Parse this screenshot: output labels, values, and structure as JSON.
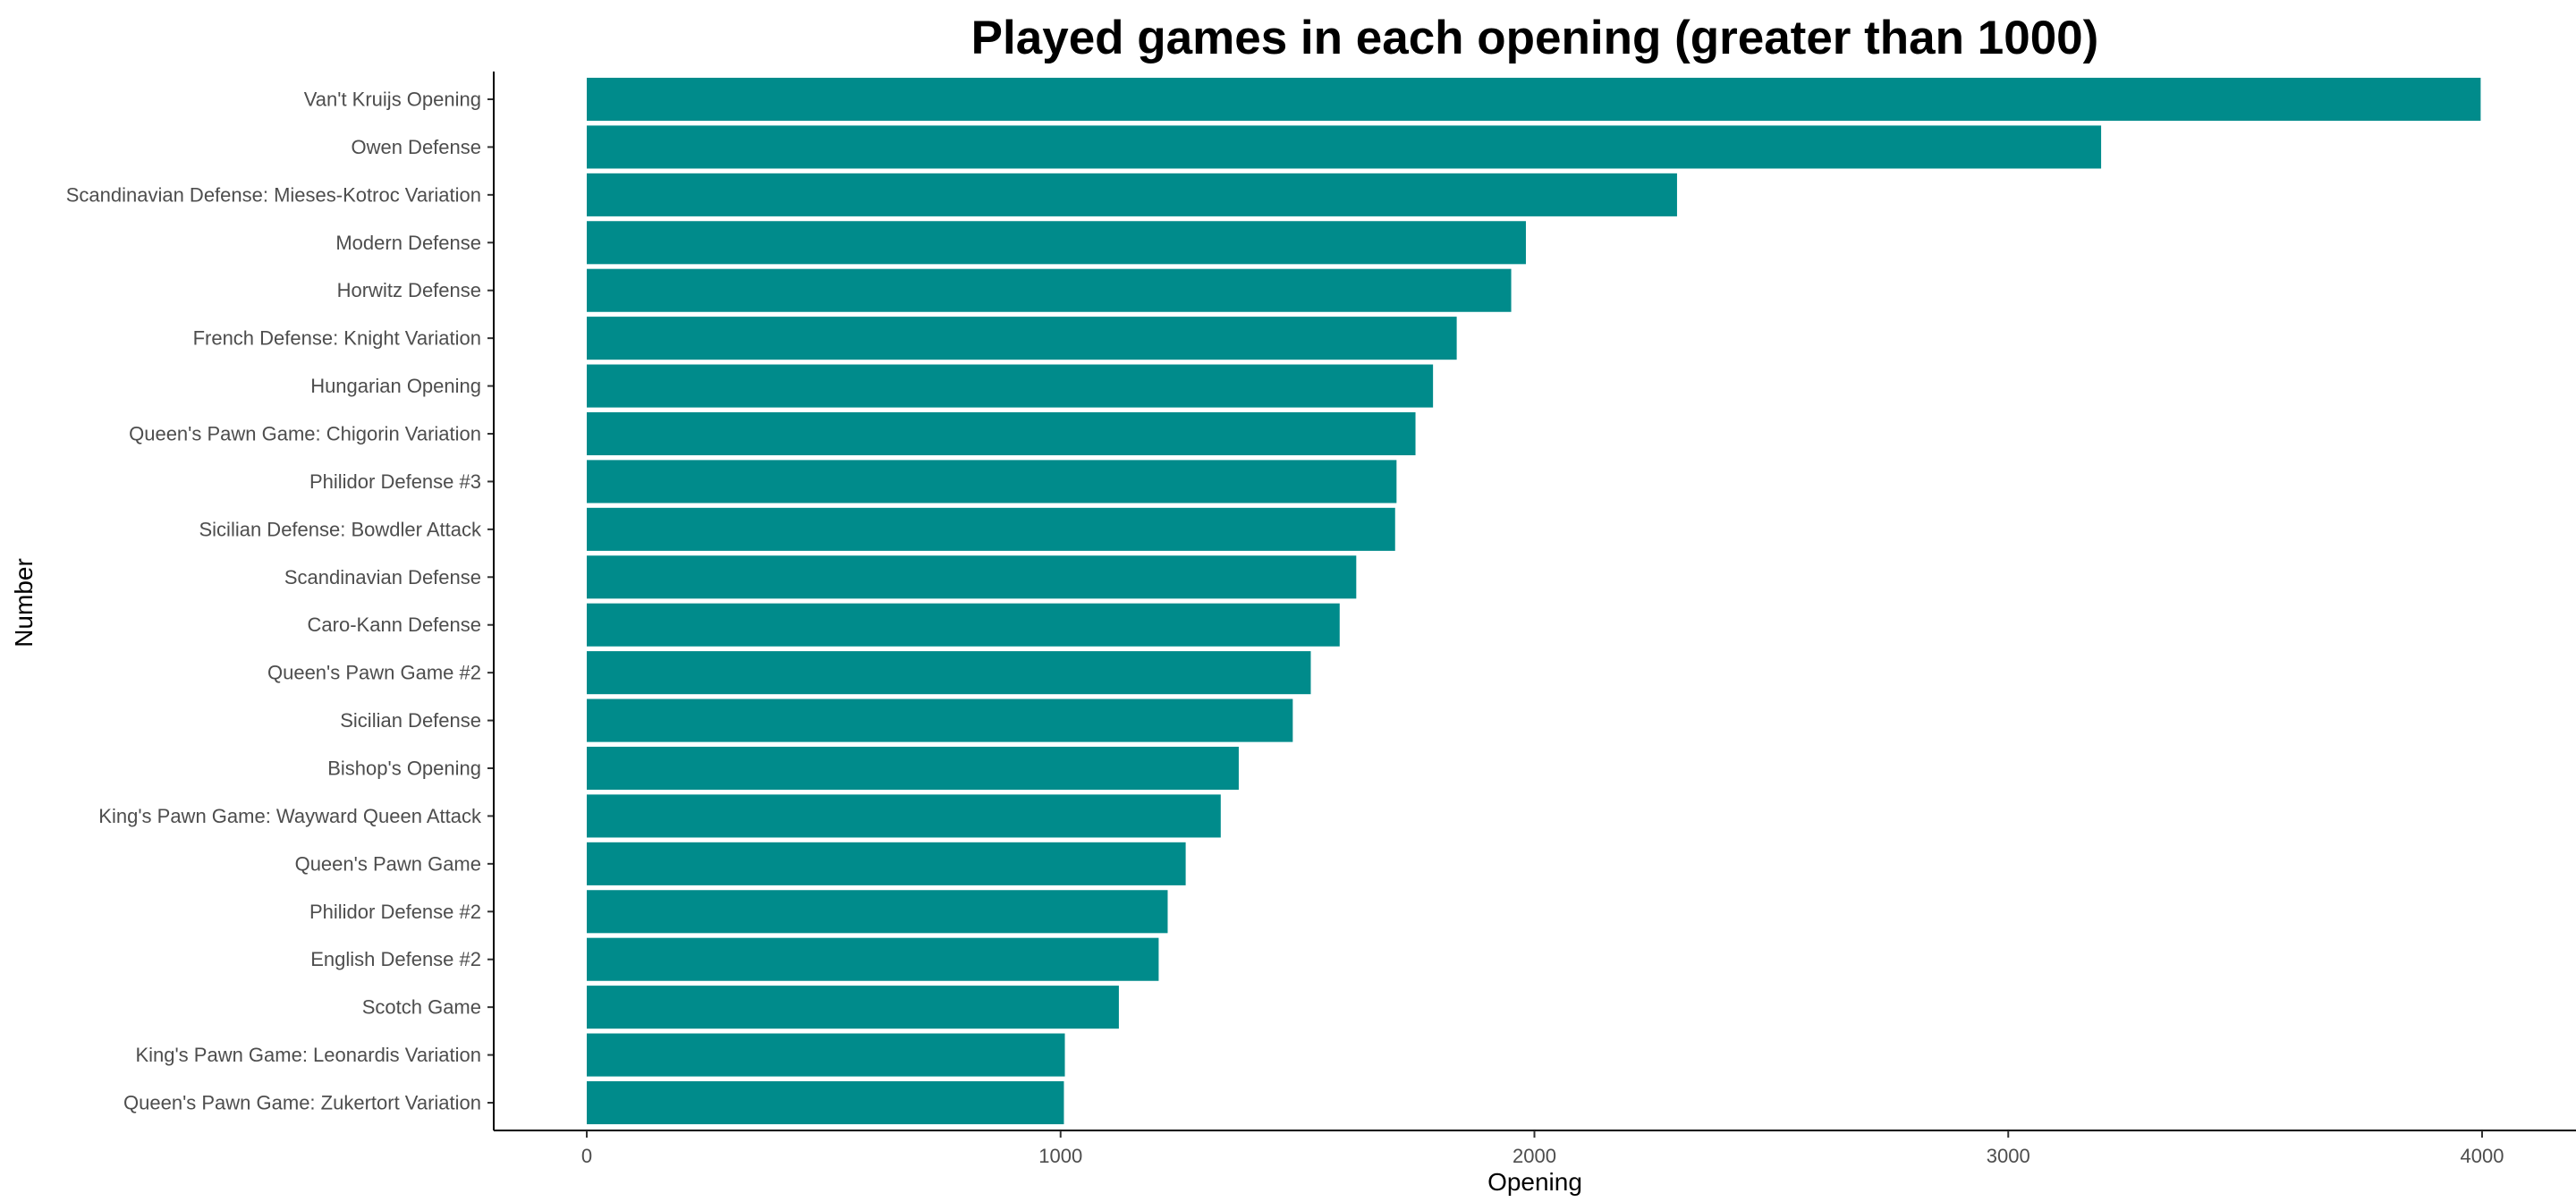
{
  "chart_data": {
    "type": "bar",
    "orientation": "horizontal",
    "title": "Played games in each opening (greater than 1000)",
    "xlabel": "Opening",
    "ylabel": "Number",
    "xlim": [
      0,
      4000
    ],
    "xticks": [
      0,
      1000,
      2000,
      3000,
      4000
    ],
    "xtick_labels": [
      "0",
      "1000",
      "2000",
      "3000",
      "4000"
    ],
    "grid": false,
    "legend": "none",
    "bar_color": "#008B8B",
    "categories": [
      "Van't Kruijs Opening",
      "Owen Defense",
      "Scandinavian Defense: Mieses-Kotroc Variation",
      "Modern Defense",
      "Horwitz Defense",
      "French Defense: Knight Variation",
      "Hungarian Opening",
      "Queen's Pawn Game: Chigorin Variation",
      "Philidor Defense #3",
      "Sicilian Defense: Bowdler Attack",
      "Scandinavian Defense",
      "Caro-Kann Defense",
      "Queen's Pawn Game #2",
      "Sicilian Defense",
      "Bishop's Opening",
      "King's Pawn Game: Wayward Queen Attack",
      "Queen's Pawn Game",
      "Philidor Defense #2",
      "English Defense #2",
      "Scotch Game",
      "King's Pawn Game: Leonardis Variation",
      "Queen's Pawn Game: Zukertort Variation"
    ],
    "values": [
      3997,
      3196,
      2301,
      1982,
      1951,
      1836,
      1786,
      1749,
      1709,
      1706,
      1624,
      1589,
      1528,
      1490,
      1376,
      1338,
      1264,
      1226,
      1207,
      1123,
      1009,
      1007
    ]
  }
}
